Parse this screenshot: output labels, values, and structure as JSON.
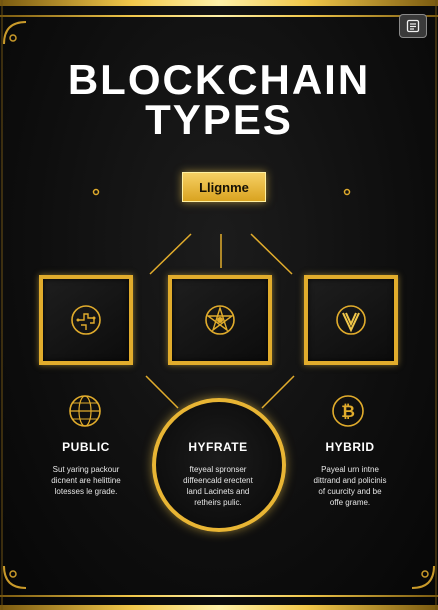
{
  "title": {
    "line1": "BLOCKCHAIN",
    "line2": "TYPES"
  },
  "center_label": "Llignme",
  "icons": {
    "panel_left": "circuit-puzzle-icon",
    "panel_middle": "pentagram-network-icon",
    "panel_right": "v-coin-icon",
    "public": "globe-icon",
    "hyfrate": "blockchain-chip-icon",
    "hybrid": "bitcoin-icon",
    "toolbar": "notes-icon"
  },
  "columns": [
    {
      "heading": "PUBLIC",
      "text": [
        "Sut yaring packour",
        "dicnent are helittine",
        "lotesses le grade."
      ]
    },
    {
      "heading": "HYFRATE",
      "text": [
        "fteyeal spronser",
        "diffeencald erectent",
        "land Lacinets and",
        "retheirs pulic."
      ]
    },
    {
      "heading": "HYBRID",
      "text": [
        "Payeal urn intne",
        "dittrand and policinis",
        "of cuurcity and be",
        "offe grame."
      ]
    }
  ],
  "colors": {
    "gold": "#e1ac2c",
    "gold_light": "#f6d064",
    "background": "#0b0b0b",
    "text": "#ffffff"
  }
}
